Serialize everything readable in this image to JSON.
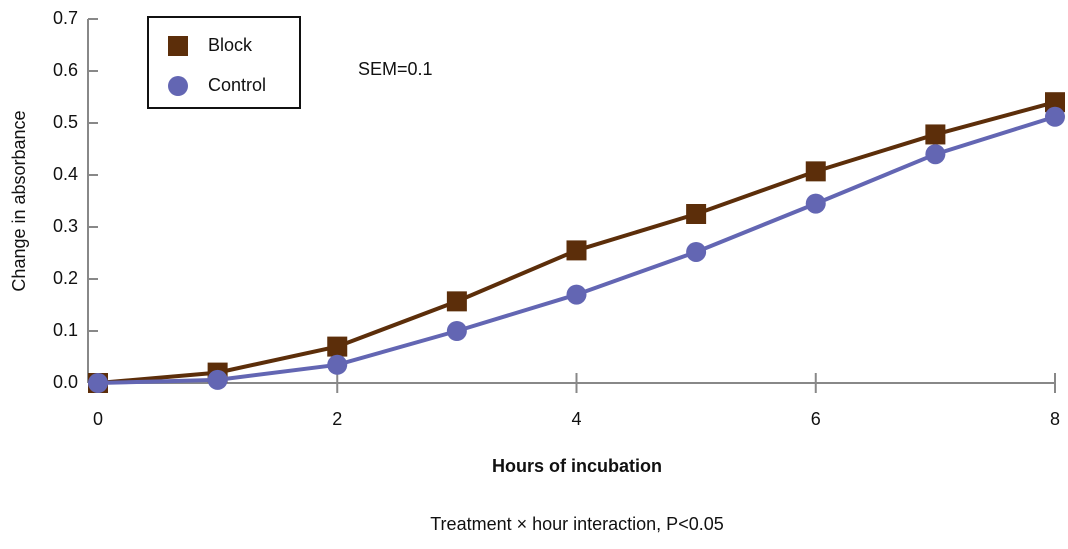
{
  "chart_data": {
    "type": "line",
    "x_label": "Hours of incubation",
    "y_label": "Change in absorbance",
    "annotations": [
      "SEM=0.1",
      "Treatment × hour interaction, P<0.05"
    ],
    "x": [
      0,
      1,
      2,
      3,
      4,
      5,
      6,
      7,
      8
    ],
    "series": [
      {
        "name": "Block",
        "color": "#5c2e0a",
        "marker": "square",
        "values": [
          0.0,
          0.02,
          0.07,
          0.157,
          0.255,
          0.325,
          0.407,
          0.478,
          0.54
        ]
      },
      {
        "name": "Control",
        "color": "#6366b3",
        "marker": "circle",
        "values": [
          0.0,
          0.006,
          0.035,
          0.1,
          0.17,
          0.252,
          0.345,
          0.44,
          0.512
        ]
      }
    ],
    "xlim": [
      0,
      8
    ],
    "xticks": [
      0,
      2,
      4,
      6,
      8
    ],
    "ylim": [
      0,
      0.7
    ],
    "yticks": [
      {
        "value": 0,
        "label": "0.0"
      },
      0.1,
      0.2,
      0.3,
      0.4,
      0.5,
      0.6,
      0.7
    ],
    "legend": "upper left"
  }
}
